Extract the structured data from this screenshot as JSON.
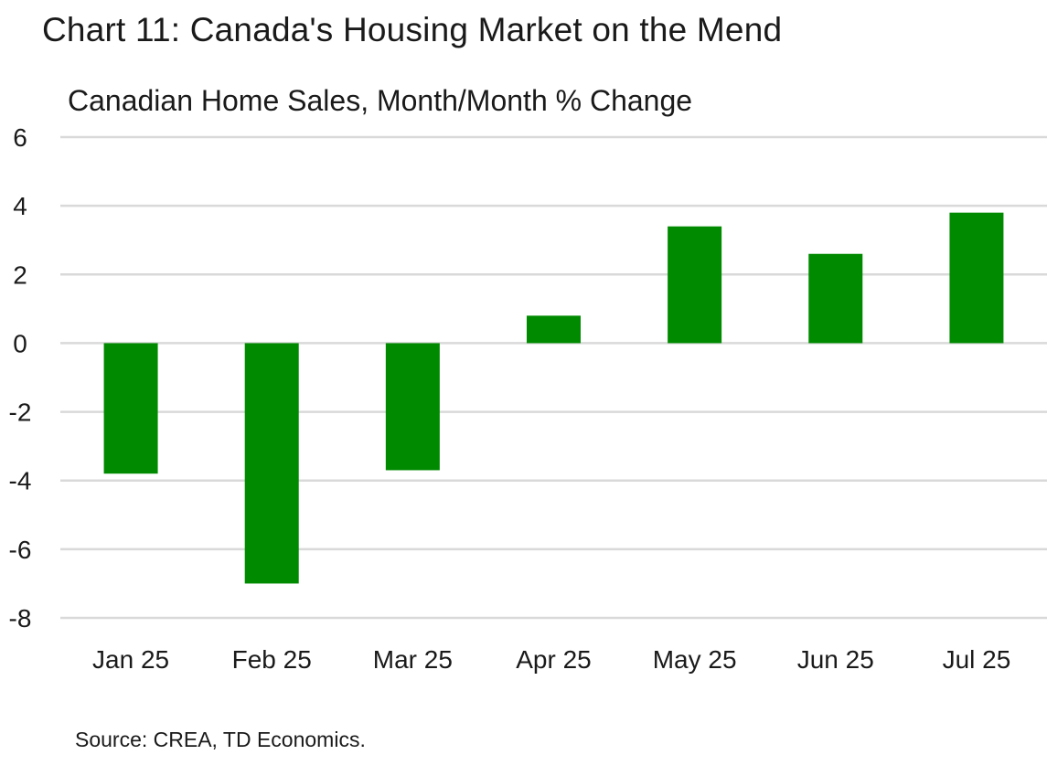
{
  "title": "Chart 11: Canada's Housing Market on the Mend",
  "subtitle": "Canadian Home Sales, Month/Month % Change",
  "source": "Source: CREA, TD Economics.",
  "colors": {
    "bar": "#008a00",
    "grid": "#d9d9d9"
  },
  "chart_data": {
    "type": "bar",
    "title": "Chart 11: Canada's Housing Market on the Mend",
    "subtitle": "Canadian Home Sales, Month/Month % Change",
    "xlabel": "",
    "ylabel": "",
    "categories": [
      "Jan 25",
      "Feb 25",
      "Mar 25",
      "Apr 25",
      "May 25",
      "Jun 25",
      "Jul 25"
    ],
    "values": [
      -3.8,
      -7.0,
      -3.7,
      0.8,
      3.4,
      2.6,
      3.8
    ],
    "ylim": [
      -8,
      6
    ],
    "yticks": [
      "6",
      "4",
      "2",
      "0",
      "-2",
      "-4",
      "-6",
      "-8"
    ],
    "ytick_values": [
      6,
      4,
      2,
      0,
      -2,
      -4,
      -6,
      -8
    ],
    "grid": true,
    "legend": "none"
  }
}
